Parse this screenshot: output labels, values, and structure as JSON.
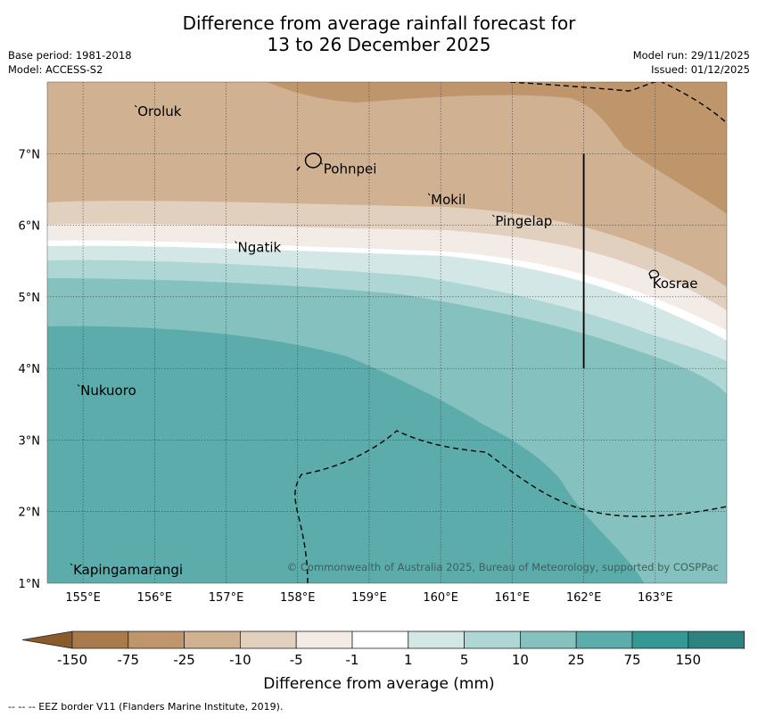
{
  "title_line1": "Difference from average rainfall forecast for",
  "title_line2": "13 to 26 December 2025",
  "meta_left": [
    "Base period: 1981-2018",
    "Model: ACCESS-S2"
  ],
  "meta_right": [
    "Model run: 29/11/2025",
    "Issued: 01/12/2025"
  ],
  "axes": {
    "lon_ticks": [
      "155°E",
      "156°E",
      "157°E",
      "158°E",
      "159°E",
      "160°E",
      "161°E",
      "162°E",
      "163°E"
    ],
    "lat_ticks": [
      "7°N",
      "6°N",
      "5°N",
      "4°N",
      "3°N",
      "2°N",
      "1°N"
    ],
    "lon_values": [
      155,
      156,
      157,
      158,
      159,
      160,
      161,
      162,
      163
    ],
    "lat_values": [
      7,
      6,
      5,
      4,
      3,
      2,
      1
    ],
    "lon_range": [
      154.5,
      164.0
    ],
    "lat_range": [
      1.0,
      8.0
    ]
  },
  "places": [
    {
      "name": "Oroluk",
      "lon": 155.75,
      "lat": 7.65
    },
    {
      "name": "Pohnpei",
      "lon": 158.35,
      "lat": 6.85
    },
    {
      "name": "Mokil",
      "lon": 159.85,
      "lat": 6.42
    },
    {
      "name": "Pingelap",
      "lon": 160.75,
      "lat": 6.12
    },
    {
      "name": "Ngatik",
      "lon": 157.15,
      "lat": 5.75
    },
    {
      "name": "Kosrae",
      "lon": 162.95,
      "lat": 5.25
    },
    {
      "name": "Nukuoro",
      "lon": 154.95,
      "lat": 3.75
    },
    {
      "name": "Kapingamarangi",
      "lon": 154.85,
      "lat": 1.25
    }
  ],
  "boundary_line": {
    "lon": 162.0,
    "lat_from": 4.0,
    "lat_to": 7.0
  },
  "colorbar": {
    "label": "Difference from average (mm)",
    "tick_labels": [
      "-150",
      "-75",
      "-25",
      "-10",
      "-5",
      "-1",
      "1",
      "5",
      "10",
      "25",
      "75",
      "150"
    ],
    "colors": [
      "#a97b4c",
      "#bf966c",
      "#d0b191",
      "#e2d0bf",
      "#f3ece6",
      "#ffffff",
      "#d3e8e6",
      "#add6d5",
      "#85c1be",
      "#5bacab",
      "#359894",
      "#2d837f"
    ]
  },
  "copyright": "© Commonwealth of Australia 2025, Bureau of Meteorology, supported by COSPPac",
  "footer": "--  --  -- EEZ border V11 (Flanders Marine Institute, 2019)."
}
